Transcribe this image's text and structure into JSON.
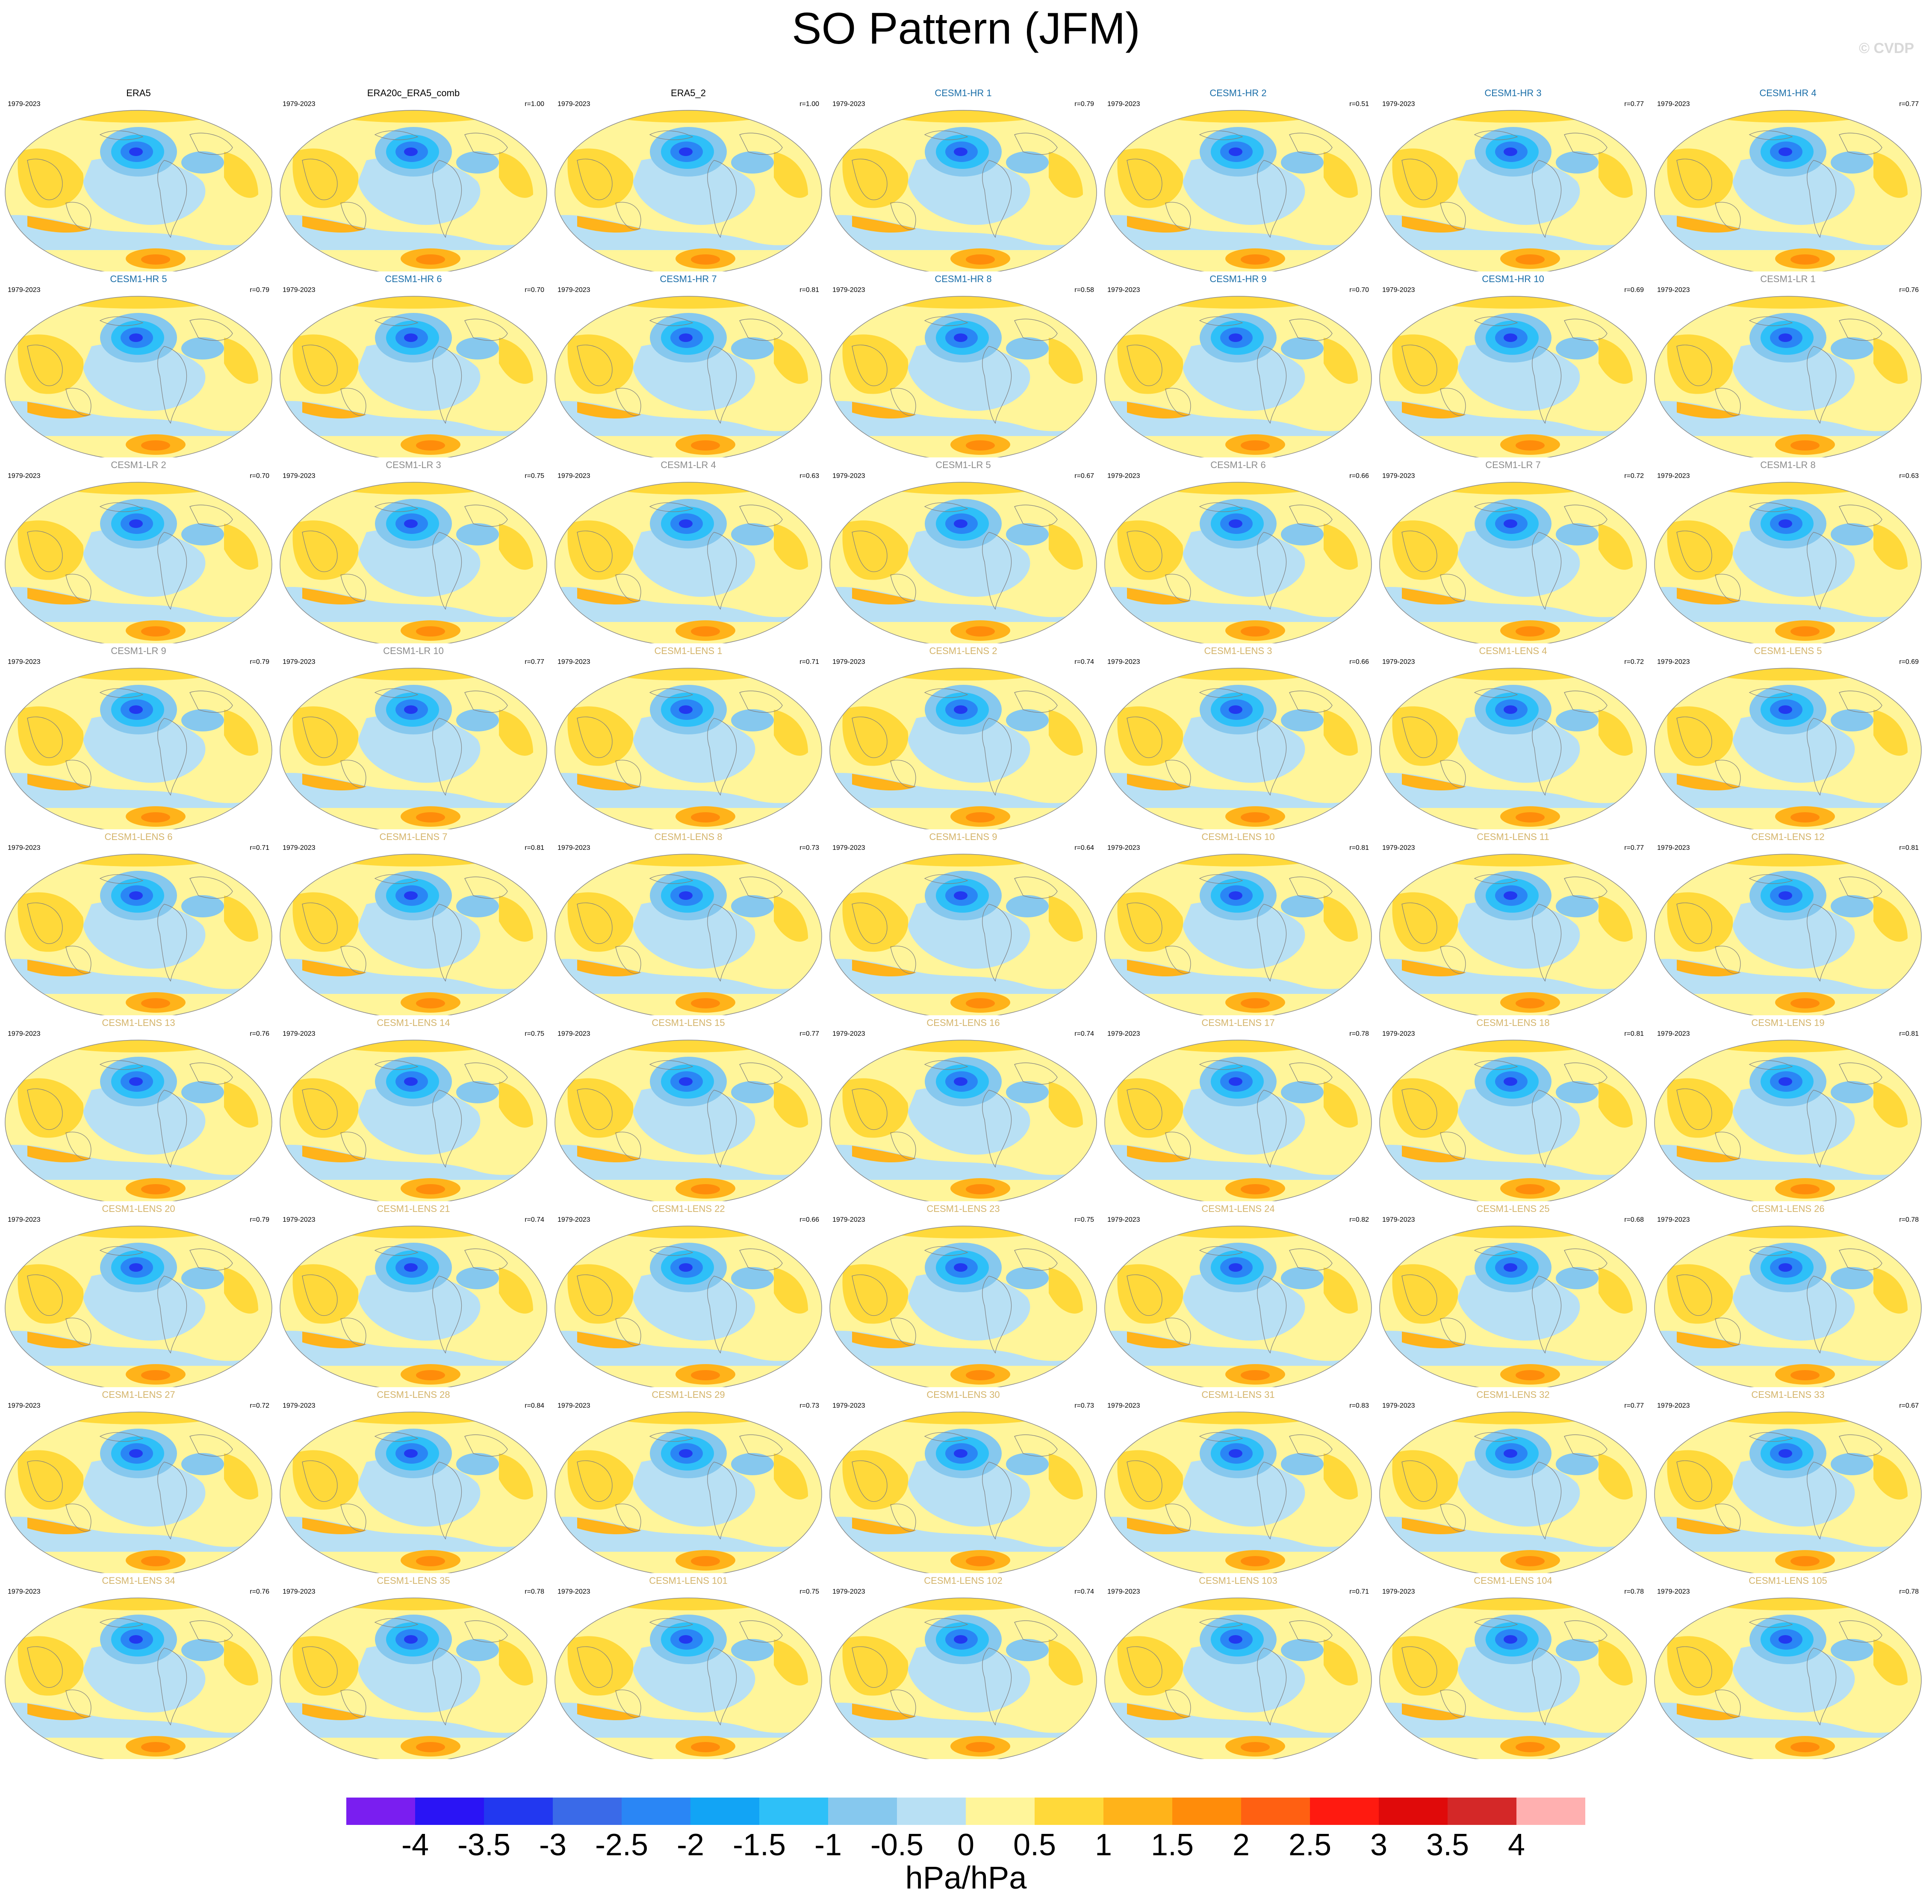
{
  "title": "SO Pattern (JFM)",
  "credit": "© CVDP",
  "colors": {
    "obs_title": "#000000",
    "hr_title": "#1a6ea8",
    "lr_title": "#8c8c8c",
    "lens_title": "#d4b46a",
    "land_outline": "#7f7f7f"
  },
  "panels": [
    {
      "title": "ERA5",
      "group": "obs",
      "years": "1979-2023",
      "r": ""
    },
    {
      "title": "ERA20c_ERA5_comb",
      "group": "obs",
      "years": "1979-2023",
      "r": "r=1.00"
    },
    {
      "title": "ERA5_2",
      "group": "obs",
      "years": "1979-2023",
      "r": "r=1.00"
    },
    {
      "title": "CESM1-HR 1",
      "group": "hr",
      "years": "1979-2023",
      "r": "r=0.79"
    },
    {
      "title": "CESM1-HR 2",
      "group": "hr",
      "years": "1979-2023",
      "r": "r=0.51"
    },
    {
      "title": "CESM1-HR 3",
      "group": "hr",
      "years": "1979-2023",
      "r": "r=0.77"
    },
    {
      "title": "CESM1-HR 4",
      "group": "hr",
      "years": "1979-2023",
      "r": "r=0.77"
    },
    {
      "title": "CESM1-HR 5",
      "group": "hr",
      "years": "1979-2023",
      "r": "r=0.79"
    },
    {
      "title": "CESM1-HR 6",
      "group": "hr",
      "years": "1979-2023",
      "r": "r=0.70"
    },
    {
      "title": "CESM1-HR 7",
      "group": "hr",
      "years": "1979-2023",
      "r": "r=0.81"
    },
    {
      "title": "CESM1-HR 8",
      "group": "hr",
      "years": "1979-2023",
      "r": "r=0.58"
    },
    {
      "title": "CESM1-HR 9",
      "group": "hr",
      "years": "1979-2023",
      "r": "r=0.70"
    },
    {
      "title": "CESM1-HR 10",
      "group": "hr",
      "years": "1979-2023",
      "r": "r=0.69"
    },
    {
      "title": "CESM1-LR 1",
      "group": "lr",
      "years": "1979-2023",
      "r": "r=0.76"
    },
    {
      "title": "CESM1-LR 2",
      "group": "lr",
      "years": "1979-2023",
      "r": "r=0.70"
    },
    {
      "title": "CESM1-LR 3",
      "group": "lr",
      "years": "1979-2023",
      "r": "r=0.75"
    },
    {
      "title": "CESM1-LR 4",
      "group": "lr",
      "years": "1979-2023",
      "r": "r=0.63"
    },
    {
      "title": "CESM1-LR 5",
      "group": "lr",
      "years": "1979-2023",
      "r": "r=0.67"
    },
    {
      "title": "CESM1-LR 6",
      "group": "lr",
      "years": "1979-2023",
      "r": "r=0.66"
    },
    {
      "title": "CESM1-LR 7",
      "group": "lr",
      "years": "1979-2023",
      "r": "r=0.72"
    },
    {
      "title": "CESM1-LR 8",
      "group": "lr",
      "years": "1979-2023",
      "r": "r=0.63"
    },
    {
      "title": "CESM1-LR 9",
      "group": "lr",
      "years": "1979-2023",
      "r": "r=0.79"
    },
    {
      "title": "CESM1-LR 10",
      "group": "lr",
      "years": "1979-2023",
      "r": "r=0.77"
    },
    {
      "title": "CESM1-LENS 1",
      "group": "lens",
      "years": "1979-2023",
      "r": "r=0.71"
    },
    {
      "title": "CESM1-LENS 2",
      "group": "lens",
      "years": "1979-2023",
      "r": "r=0.74"
    },
    {
      "title": "CESM1-LENS 3",
      "group": "lens",
      "years": "1979-2023",
      "r": "r=0.66"
    },
    {
      "title": "CESM1-LENS 4",
      "group": "lens",
      "years": "1979-2023",
      "r": "r=0.72"
    },
    {
      "title": "CESM1-LENS 5",
      "group": "lens",
      "years": "1979-2023",
      "r": "r=0.69"
    },
    {
      "title": "CESM1-LENS 6",
      "group": "lens",
      "years": "1979-2023",
      "r": "r=0.71"
    },
    {
      "title": "CESM1-LENS 7",
      "group": "lens",
      "years": "1979-2023",
      "r": "r=0.81"
    },
    {
      "title": "CESM1-LENS 8",
      "group": "lens",
      "years": "1979-2023",
      "r": "r=0.73"
    },
    {
      "title": "CESM1-LENS 9",
      "group": "lens",
      "years": "1979-2023",
      "r": "r=0.64"
    },
    {
      "title": "CESM1-LENS 10",
      "group": "lens",
      "years": "1979-2023",
      "r": "r=0.81"
    },
    {
      "title": "CESM1-LENS 11",
      "group": "lens",
      "years": "1979-2023",
      "r": "r=0.77"
    },
    {
      "title": "CESM1-LENS 12",
      "group": "lens",
      "years": "1979-2023",
      "r": "r=0.81"
    },
    {
      "title": "CESM1-LENS 13",
      "group": "lens",
      "years": "1979-2023",
      "r": "r=0.76"
    },
    {
      "title": "CESM1-LENS 14",
      "group": "lens",
      "years": "1979-2023",
      "r": "r=0.75"
    },
    {
      "title": "CESM1-LENS 15",
      "group": "lens",
      "years": "1979-2023",
      "r": "r=0.77"
    },
    {
      "title": "CESM1-LENS 16",
      "group": "lens",
      "years": "1979-2023",
      "r": "r=0.74"
    },
    {
      "title": "CESM1-LENS 17",
      "group": "lens",
      "years": "1979-2023",
      "r": "r=0.78"
    },
    {
      "title": "CESM1-LENS 18",
      "group": "lens",
      "years": "1979-2023",
      "r": "r=0.81"
    },
    {
      "title": "CESM1-LENS 19",
      "group": "lens",
      "years": "1979-2023",
      "r": "r=0.81"
    },
    {
      "title": "CESM1-LENS 20",
      "group": "lens",
      "years": "1979-2023",
      "r": "r=0.79"
    },
    {
      "title": "CESM1-LENS 21",
      "group": "lens",
      "years": "1979-2023",
      "r": "r=0.74"
    },
    {
      "title": "CESM1-LENS 22",
      "group": "lens",
      "years": "1979-2023",
      "r": "r=0.66"
    },
    {
      "title": "CESM1-LENS 23",
      "group": "lens",
      "years": "1979-2023",
      "r": "r=0.75"
    },
    {
      "title": "CESM1-LENS 24",
      "group": "lens",
      "years": "1979-2023",
      "r": "r=0.82"
    },
    {
      "title": "CESM1-LENS 25",
      "group": "lens",
      "years": "1979-2023",
      "r": "r=0.68"
    },
    {
      "title": "CESM1-LENS 26",
      "group": "lens",
      "years": "1979-2023",
      "r": "r=0.78"
    },
    {
      "title": "CESM1-LENS 27",
      "group": "lens",
      "years": "1979-2023",
      "r": "r=0.72"
    },
    {
      "title": "CESM1-LENS 28",
      "group": "lens",
      "years": "1979-2023",
      "r": "r=0.84"
    },
    {
      "title": "CESM1-LENS 29",
      "group": "lens",
      "years": "1979-2023",
      "r": "r=0.73"
    },
    {
      "title": "CESM1-LENS 30",
      "group": "lens",
      "years": "1979-2023",
      "r": "r=0.73"
    },
    {
      "title": "CESM1-LENS 31",
      "group": "lens",
      "years": "1979-2023",
      "r": "r=0.83"
    },
    {
      "title": "CESM1-LENS 32",
      "group": "lens",
      "years": "1979-2023",
      "r": "r=0.77"
    },
    {
      "title": "CESM1-LENS 33",
      "group": "lens",
      "years": "1979-2023",
      "r": "r=0.67"
    },
    {
      "title": "CESM1-LENS 34",
      "group": "lens",
      "years": "1979-2023",
      "r": "r=0.76"
    },
    {
      "title": "CESM1-LENS 35",
      "group": "lens",
      "years": "1979-2023",
      "r": "r=0.78"
    },
    {
      "title": "CESM1-LENS 101",
      "group": "lens",
      "years": "1979-2023",
      "r": "r=0.75"
    },
    {
      "title": "CESM1-LENS 102",
      "group": "lens",
      "years": "1979-2023",
      "r": "r=0.74"
    },
    {
      "title": "CESM1-LENS 103",
      "group": "lens",
      "years": "1979-2023",
      "r": "r=0.71"
    },
    {
      "title": "CESM1-LENS 104",
      "group": "lens",
      "years": "1979-2023",
      "r": "r=0.78"
    },
    {
      "title": "CESM1-LENS 105",
      "group": "lens",
      "years": "1979-2023",
      "r": "r=0.78"
    }
  ],
  "colorbar": {
    "units": "hPa/hPa",
    "colors": [
      "#7a1ef0",
      "#2a14f5",
      "#2238f0",
      "#3a6ae8",
      "#2a86f5",
      "#12a4f5",
      "#2ec0f8",
      "#86c8ee",
      "#b8e0f4",
      "#fff59a",
      "#ffd93a",
      "#ffb31a",
      "#ff8c0a",
      "#ff6012",
      "#ff1a10",
      "#e00a0a",
      "#d42828",
      "#ffb0b0"
    ],
    "labels": [
      "-4",
      "-3.5",
      "-3",
      "-2.5",
      "-2",
      "-1.5",
      "-1",
      "-0.5",
      "0",
      "0.5",
      "1",
      "1.5",
      "2",
      "2.5",
      "3",
      "3.5",
      "4"
    ]
  }
}
